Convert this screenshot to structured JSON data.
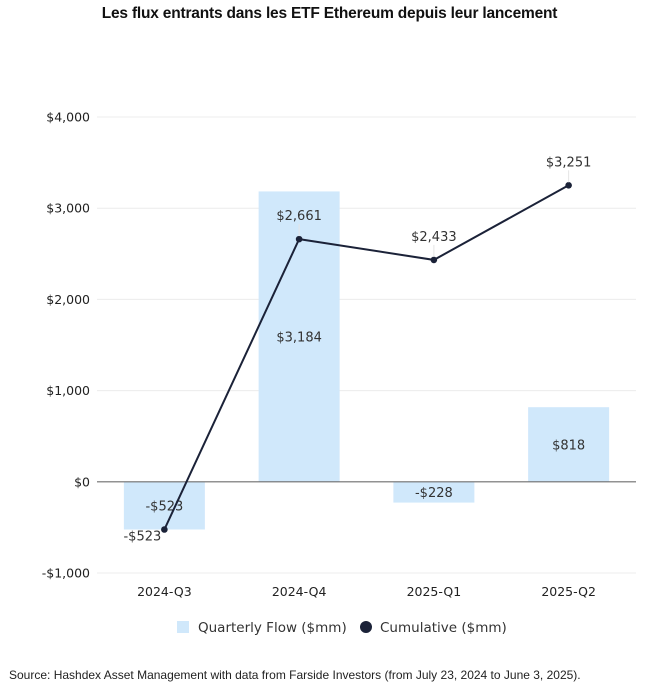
{
  "chart_data": {
    "type": "bar",
    "title": "Les flux entrants dans les ETF Ethereum depuis leur lancement",
    "xlabel": "",
    "ylabel": "",
    "categories": [
      "2024-Q3",
      "2024-Q4",
      "2025-Q1",
      "2025-Q2"
    ],
    "ylim": [
      -1000,
      4000
    ],
    "yticks": [
      -1000,
      0,
      1000,
      2000,
      3000,
      4000
    ],
    "ytick_labels": [
      "-$1,000",
      "$0",
      "$1,000",
      "$2,000",
      "$3,000",
      "$4,000"
    ],
    "grid": true,
    "legend_position": "bottom",
    "series": [
      {
        "name": "Quarterly Flow ($mm)",
        "type": "bar",
        "color": "#d0e8fb",
        "values": [
          -523,
          3184,
          -228,
          818
        ],
        "labels": [
          "-$523",
          "$3,184",
          "-$228",
          "$818"
        ]
      },
      {
        "name": "Cumulative ($mm)",
        "type": "line",
        "color": "#1b2238",
        "values": [
          -523,
          2661,
          2433,
          3251
        ],
        "labels": [
          "-$523",
          "$2,661",
          "$2,433",
          "$3,251"
        ]
      }
    ]
  },
  "source": "Source: Hashdex Asset Management with data from Farside Investors (from July 23, 2024 to June 3, 2025)."
}
